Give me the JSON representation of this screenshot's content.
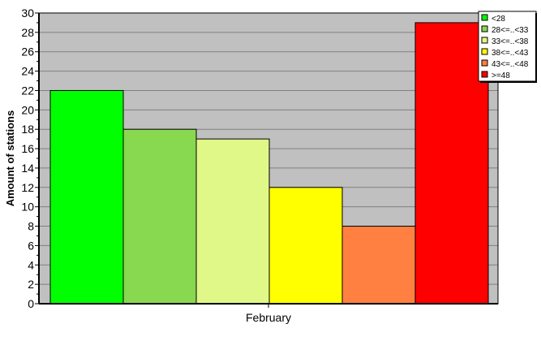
{
  "chart_data": {
    "type": "bar",
    "title": "",
    "xlabel": "",
    "ylabel": "Amount of stations",
    "categories": [
      "February"
    ],
    "ylim": [
      0,
      30
    ],
    "yticks": [
      0,
      2,
      4,
      6,
      8,
      10,
      12,
      14,
      16,
      18,
      20,
      22,
      24,
      26,
      28,
      30
    ],
    "grid": true,
    "legend_position": "top-right",
    "plot_background": "#c0c0c0",
    "series": [
      {
        "name": "<28",
        "values": [
          22
        ],
        "color": "#00ff00"
      },
      {
        "name": "28<=..<33",
        "values": [
          18
        ],
        "color": "#88d850"
      },
      {
        "name": "33<=..<38",
        "values": [
          17
        ],
        "color": "#e0f888"
      },
      {
        "name": "38<=..<43",
        "values": [
          12
        ],
        "color": "#ffff00"
      },
      {
        "name": "43<=..<48",
        "values": [
          8
        ],
        "color": "#ff8040"
      },
      {
        "name": ">=48",
        "values": [
          29
        ],
        "color": "#ff0000"
      }
    ]
  }
}
